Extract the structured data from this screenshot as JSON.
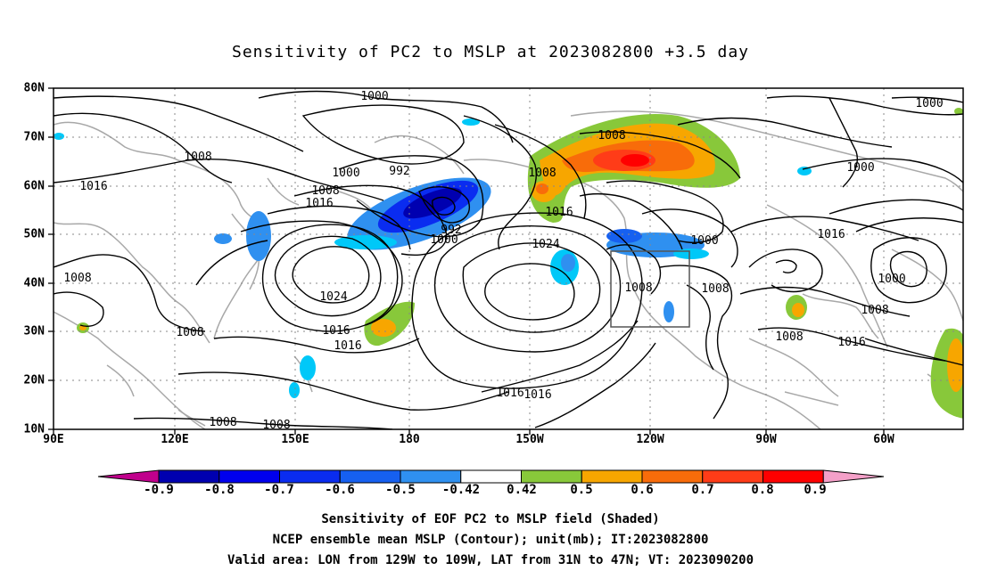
{
  "title": "Sensitivity of PC2 to MSLP at 2023082800 +3.5 day",
  "lat_labels": [
    "80N",
    "70N",
    "60N",
    "50N",
    "40N",
    "30N",
    "20N",
    "10N"
  ],
  "lon_labels": [
    "90E",
    "120E",
    "150E",
    "180",
    "150W",
    "120W",
    "90W",
    "60W"
  ],
  "isobar_labels": [
    "1000",
    "1008",
    "1016",
    "1008",
    "992",
    "1000",
    "1008",
    "1016",
    "992",
    "1000",
    "1024",
    "1008",
    "1008",
    "1016",
    "1024",
    "1016",
    "1016",
    "1008",
    "1008",
    "1016",
    "1000",
    "1008",
    "1008",
    "1016",
    "1000",
    "1000",
    "1000",
    "1008",
    "1008",
    "1016",
    "1016",
    "1008"
  ],
  "colorbar": {
    "ticks": [
      "-0.9",
      "-0.8",
      "-0.7",
      "-0.6",
      "-0.5",
      "-0.42",
      "0.42",
      "0.5",
      "0.6",
      "0.7",
      "0.8",
      "0.9"
    ],
    "colors": [
      "#0000b0",
      "#0000ee",
      "#0a2cf0",
      "#1660f0",
      "#2f90f0",
      "#00c8f8",
      "#ffffff",
      "#88c83a",
      "#f7a600",
      "#f86c0a",
      "#ff3c18",
      "#ff0000"
    ],
    "low_extend_color": "#c0008c",
    "high_extend_color": "#f4a0c8"
  },
  "footer": {
    "line1": "Sensitivity of EOF PC2 to MSLP field (Shaded)",
    "line2": "NCEP ensemble mean MSLP (Contour); unit(mb); IT:2023082800",
    "line3": "Valid area: LON from 129W to 109W, LAT from 31N to 47N; VT: 2023090200"
  }
}
